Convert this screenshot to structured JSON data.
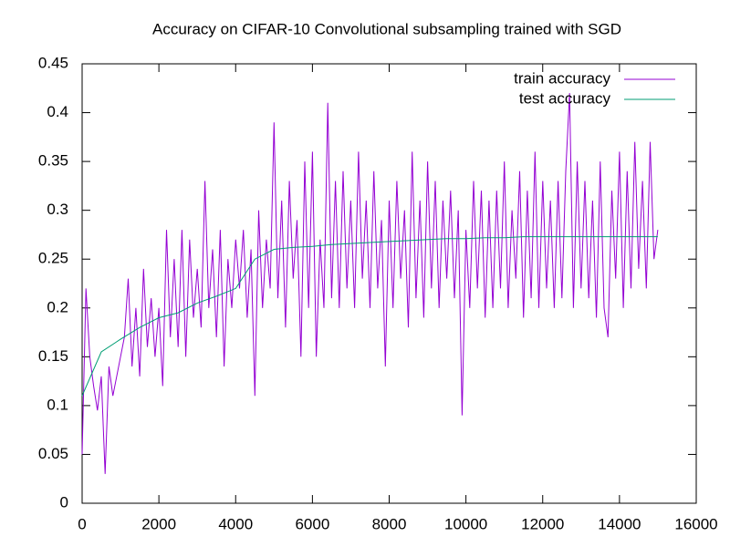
{
  "chart_data": {
    "type": "line",
    "title": "Accuracy on CIFAR-10 Convolutional subsampling trained with SGD",
    "xlim": [
      0,
      16000
    ],
    "xticks": [
      0,
      2000,
      4000,
      6000,
      8000,
      10000,
      12000,
      14000,
      16000
    ],
    "ylim": [
      0,
      0.45
    ],
    "yticks": [
      0,
      0.05,
      0.1,
      0.15,
      0.2,
      0.25,
      0.3,
      0.35,
      0.4,
      0.45
    ],
    "grid": false,
    "legend": "top-right",
    "series": [
      {
        "name": "train accuracy",
        "color": "#9400d3",
        "x": [
          0,
          100,
          200,
          300,
          400,
          500,
          600,
          700,
          800,
          900,
          1000,
          1100,
          1200,
          1300,
          1400,
          1500,
          1600,
          1700,
          1800,
          1900,
          2000,
          2100,
          2200,
          2300,
          2400,
          2500,
          2600,
          2700,
          2800,
          2900,
          3000,
          3100,
          3200,
          3300,
          3400,
          3500,
          3600,
          3700,
          3800,
          3900,
          4000,
          4100,
          4200,
          4300,
          4400,
          4500,
          4600,
          4700,
          4800,
          4900,
          5000,
          5100,
          5200,
          5300,
          5400,
          5500,
          5600,
          5700,
          5800,
          5900,
          6000,
          6100,
          6200,
          6300,
          6400,
          6500,
          6600,
          6700,
          6800,
          6900,
          7000,
          7100,
          7200,
          7300,
          7400,
          7500,
          7600,
          7700,
          7800,
          7900,
          8000,
          8100,
          8200,
          8300,
          8400,
          8500,
          8600,
          8700,
          8800,
          8900,
          9000,
          9100,
          9200,
          9300,
          9400,
          9500,
          9600,
          9700,
          9800,
          9900,
          10000,
          10100,
          10200,
          10300,
          10400,
          10500,
          10600,
          10700,
          10800,
          10900,
          11000,
          11100,
          11200,
          11300,
          11400,
          11500,
          11600,
          11700,
          11800,
          11900,
          12000,
          12100,
          12200,
          12300,
          12400,
          12500,
          12600,
          12700,
          12800,
          12900,
          13000,
          13100,
          13200,
          13300,
          13400,
          13500,
          13600,
          13700,
          13800,
          13900,
          14000,
          14100,
          14200,
          14300,
          14400,
          14500,
          14600,
          14700,
          14800,
          14900,
          15000
        ],
        "values": [
          0.05,
          0.22,
          0.15,
          0.12,
          0.095,
          0.13,
          0.03,
          0.14,
          0.11,
          0.13,
          0.15,
          0.17,
          0.23,
          0.14,
          0.2,
          0.13,
          0.24,
          0.16,
          0.21,
          0.15,
          0.2,
          0.12,
          0.28,
          0.17,
          0.25,
          0.16,
          0.28,
          0.15,
          0.27,
          0.19,
          0.24,
          0.18,
          0.33,
          0.2,
          0.26,
          0.17,
          0.28,
          0.14,
          0.25,
          0.2,
          0.27,
          0.22,
          0.28,
          0.19,
          0.26,
          0.11,
          0.3,
          0.2,
          0.27,
          0.22,
          0.39,
          0.21,
          0.31,
          0.18,
          0.33,
          0.23,
          0.29,
          0.15,
          0.35,
          0.2,
          0.36,
          0.15,
          0.27,
          0.2,
          0.41,
          0.21,
          0.33,
          0.2,
          0.34,
          0.22,
          0.31,
          0.2,
          0.36,
          0.23,
          0.31,
          0.2,
          0.34,
          0.22,
          0.29,
          0.14,
          0.31,
          0.2,
          0.33,
          0.23,
          0.3,
          0.18,
          0.36,
          0.21,
          0.31,
          0.19,
          0.35,
          0.22,
          0.33,
          0.2,
          0.31,
          0.23,
          0.32,
          0.21,
          0.3,
          0.09,
          0.28,
          0.2,
          0.33,
          0.22,
          0.32,
          0.19,
          0.31,
          0.2,
          0.32,
          0.22,
          0.35,
          0.2,
          0.3,
          0.23,
          0.34,
          0.19,
          0.32,
          0.21,
          0.36,
          0.2,
          0.33,
          0.22,
          0.31,
          0.2,
          0.33,
          0.21,
          0.34,
          0.42,
          0.2,
          0.35,
          0.22,
          0.33,
          0.21,
          0.31,
          0.19,
          0.35,
          0.2,
          0.17,
          0.32,
          0.23,
          0.36,
          0.2,
          0.34,
          0.22,
          0.37,
          0.24,
          0.33,
          0.22,
          0.37,
          0.25,
          0.28
        ]
      },
      {
        "name": "test accuracy",
        "color": "#009e73",
        "x": [
          0,
          500,
          1000,
          1500,
          2000,
          2500,
          3000,
          3500,
          4000,
          4500,
          5000,
          5500,
          6000,
          6500,
          7000,
          7500,
          8000,
          8500,
          9000,
          9500,
          10000,
          10500,
          11000,
          11500,
          12000,
          12500,
          13000,
          13500,
          14000,
          14500,
          15000
        ],
        "values": [
          0.11,
          0.155,
          0.168,
          0.18,
          0.19,
          0.195,
          0.205,
          0.212,
          0.22,
          0.25,
          0.26,
          0.262,
          0.263,
          0.265,
          0.266,
          0.267,
          0.268,
          0.269,
          0.27,
          0.271,
          0.271,
          0.272,
          0.272,
          0.273,
          0.273,
          0.273,
          0.273,
          0.273,
          0.273,
          0.273,
          0.273
        ]
      }
    ]
  }
}
